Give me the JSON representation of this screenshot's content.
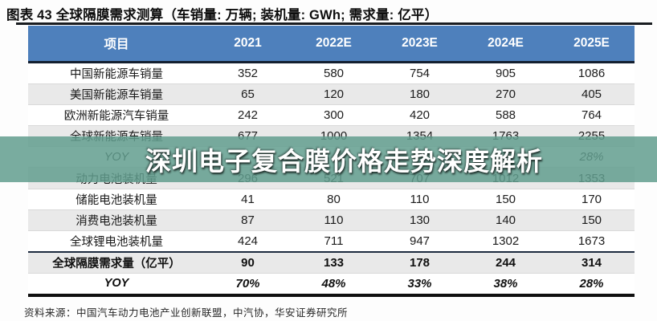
{
  "figure": {
    "title": "图表 43 全球隔膜需求测算（车销量: 万辆; 装机量: GWh; 需求量: 亿平）"
  },
  "watermark": {
    "text": "深圳电子复合膜价格走势深度解析"
  },
  "chart_data": {
    "type": "table",
    "title": "全球隔膜需求测算",
    "units": {
      "车销量": "万辆",
      "装机量": "GWh",
      "需求量": "亿平"
    },
    "columns": [
      "项目",
      "2021",
      "2022E",
      "2023E",
      "2024E",
      "2025E"
    ],
    "rows": [
      {
        "label": "中国新能源车销量",
        "values": [
          "352",
          "580",
          "754",
          "905",
          "1086"
        ],
        "style": "normal"
      },
      {
        "label": "美国新能源车销量",
        "values": [
          "65",
          "120",
          "180",
          "270",
          "405"
        ],
        "style": "normal"
      },
      {
        "label": "欧洲新能源汽车销量",
        "values": [
          "242",
          "300",
          "420",
          "588",
          "764"
        ],
        "style": "normal"
      },
      {
        "label": "全球新能源车销量",
        "values": [
          "677",
          "1000",
          "1354",
          "1763",
          "2255"
        ],
        "style": "normal"
      },
      {
        "label": "YOY",
        "values": [
          "",
          "",
          "",
          "",
          "28%"
        ],
        "style": "italic"
      },
      {
        "label": "动力电池装机量",
        "values": [
          "296",
          "521",
          "707",
          "1012",
          "1353"
        ],
        "style": "normal"
      },
      {
        "label": "储能电池装机量",
        "values": [
          "41",
          "80",
          "110",
          "150",
          "170"
        ],
        "style": "normal"
      },
      {
        "label": "消费电池装机量",
        "values": [
          "87",
          "110",
          "130",
          "140",
          "150"
        ],
        "style": "normal"
      },
      {
        "label": "全球锂电池装机量",
        "values": [
          "424",
          "711",
          "947",
          "1302",
          "1673"
        ],
        "style": "normal"
      },
      {
        "label": "全球隔膜需求量（亿平）",
        "values": [
          "90",
          "133",
          "178",
          "244",
          "314"
        ],
        "style": "bold"
      },
      {
        "label": "YOY",
        "values": [
          "70%",
          "48%",
          "33%",
          "38%",
          "28%"
        ],
        "style": "bold-italic"
      }
    ]
  },
  "source": "资料来源：中国汽车动力电池产业创新联盟，中汽协，华安证券研究所",
  "colors": {
    "header_bg": "#4e80bc",
    "header_text": "#ffffff",
    "row_alt_bg": "#e9e9e9",
    "watermark_band": "#629d8e",
    "watermark_text": "#ffffff",
    "rule_dark": "#101010"
  }
}
